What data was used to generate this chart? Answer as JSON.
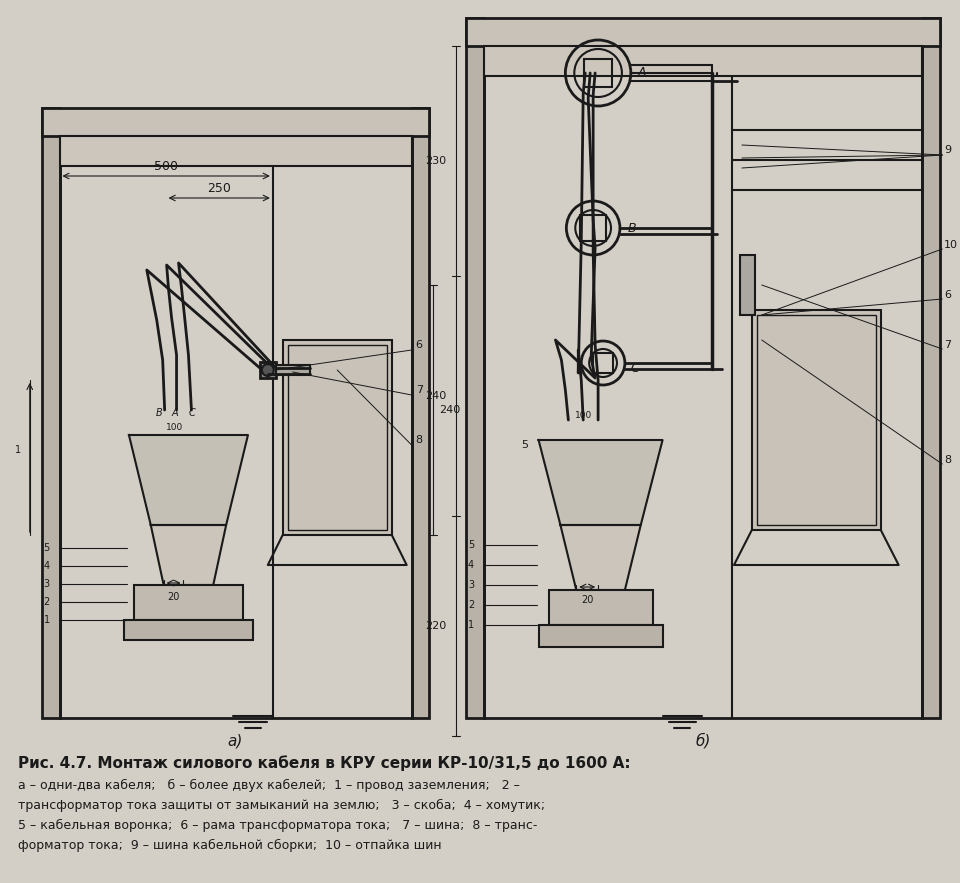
{
  "bg_color": "#d4cfc6",
  "text_color": "#1a1a1a",
  "line_color": "#1a1a1a",
  "title_line1": "Рис. 4.7. Монтаж силового кабеля в КРУ серии КР-10/31,5 до 1600 А:",
  "caption_line2": "а – одни-два кабеля;   б – более двух кабелей;  1 – провод заземления;   2 –",
  "caption_line3": "трансформатор тока защиты от замыканий на землю;   3 – скоба;  4 – хомутик;",
  "caption_line4": "5 – кабельная воронка;  6 – рама трансформатора тока;   7 – шина;  8 – транс-",
  "caption_line5": "форматор тока;  9 – шина кабельной сборки;  10 – отпайка шин"
}
